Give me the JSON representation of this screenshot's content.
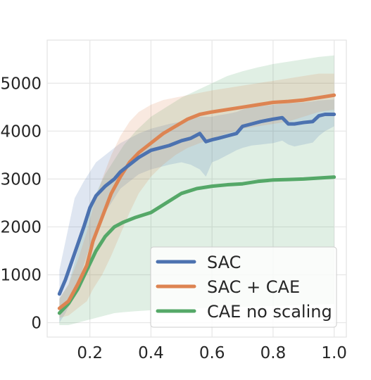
{
  "chart_data": {
    "type": "line",
    "title": "",
    "xlabel": "",
    "ylabel": "",
    "xlim": [
      0.06,
      1.04
    ],
    "ylim": [
      -300,
      5900
    ],
    "xticks": [
      0.2,
      0.4,
      0.6,
      0.8,
      1.0
    ],
    "xtick_labels": [
      "0.2",
      "0.4",
      "0.6",
      "0.8",
      "1.0"
    ],
    "yticks": [
      0,
      1000,
      2000,
      3000,
      4000,
      5000
    ],
    "ytick_labels": [
      "0",
      "1000",
      "2000",
      "3000",
      "4000",
      "5000"
    ],
    "grid": true,
    "legend_position": "lower-right",
    "series": [
      {
        "name": "SAC",
        "color": "#4c72b0",
        "x": [
          0.1,
          0.12,
          0.15,
          0.18,
          0.2,
          0.22,
          0.25,
          0.28,
          0.3,
          0.33,
          0.36,
          0.4,
          0.43,
          0.46,
          0.5,
          0.53,
          0.56,
          0.58,
          0.6,
          0.62,
          0.65,
          0.68,
          0.7,
          0.73,
          0.76,
          0.8,
          0.83,
          0.85,
          0.87,
          0.9,
          0.93,
          0.95,
          0.97,
          1.0
        ],
        "mean": [
          600,
          900,
          1450,
          2000,
          2400,
          2650,
          2850,
          3000,
          3150,
          3300,
          3450,
          3600,
          3650,
          3700,
          3800,
          3850,
          3950,
          3780,
          3820,
          3850,
          3900,
          3950,
          4100,
          4150,
          4200,
          4250,
          4280,
          4150,
          4150,
          4180,
          4200,
          4320,
          4350,
          4350
        ],
        "lower": [
          0,
          200,
          600,
          1200,
          1600,
          1900,
          2300,
          2600,
          2800,
          2950,
          3100,
          3200,
          3250,
          3300,
          3350,
          3300,
          3200,
          3050,
          3350,
          3400,
          3500,
          3600,
          3650,
          3700,
          3720,
          3750,
          3800,
          3720,
          3680,
          3720,
          3760,
          3900,
          4000,
          4100
        ],
        "upper": [
          1100,
          1700,
          2600,
          2950,
          3150,
          3350,
          3500,
          3650,
          3750,
          3850,
          3950,
          4050,
          4100,
          4150,
          4200,
          4250,
          4300,
          4300,
          4300,
          4330,
          4360,
          4400,
          4450,
          4500,
          4520,
          4550,
          4570,
          4580,
          4590,
          4600,
          4620,
          4640,
          4650,
          4660
        ]
      },
      {
        "name": "SAC + CAE",
        "color": "#dd8452",
        "x": [
          0.1,
          0.13,
          0.16,
          0.19,
          0.21,
          0.24,
          0.27,
          0.3,
          0.33,
          0.36,
          0.4,
          0.44,
          0.48,
          0.52,
          0.56,
          0.6,
          0.65,
          0.7,
          0.75,
          0.8,
          0.85,
          0.9,
          0.95,
          1.0
        ],
        "mean": [
          300,
          450,
          800,
          1200,
          1700,
          2200,
          2700,
          3050,
          3350,
          3550,
          3750,
          3950,
          4100,
          4250,
          4350,
          4400,
          4450,
          4500,
          4550,
          4600,
          4620,
          4650,
          4700,
          4750
        ],
        "lower": [
          100,
          150,
          300,
          450,
          700,
          1000,
          1400,
          1850,
          2300,
          2700,
          3050,
          3300,
          3500,
          3650,
          3750,
          3850,
          3950,
          4050,
          4100,
          4150,
          4200,
          4300,
          4400,
          4450
        ],
        "upper": [
          500,
          800,
          1300,
          1900,
          2400,
          3000,
          3500,
          3900,
          4200,
          4400,
          4550,
          4650,
          4700,
          4750,
          4800,
          4850,
          4900,
          4950,
          5000,
          5050,
          5100,
          5150,
          5200,
          5200
        ]
      },
      {
        "name": "CAE no scaling",
        "color": "#55a868",
        "x": [
          0.1,
          0.13,
          0.16,
          0.19,
          0.22,
          0.25,
          0.28,
          0.31,
          0.35,
          0.4,
          0.45,
          0.5,
          0.55,
          0.6,
          0.65,
          0.7,
          0.75,
          0.8,
          0.85,
          0.9,
          0.95,
          1.0
        ],
        "mean": [
          200,
          400,
          700,
          1100,
          1500,
          1800,
          2000,
          2100,
          2200,
          2300,
          2500,
          2700,
          2800,
          2850,
          2880,
          2900,
          2950,
          2980,
          2990,
          3000,
          3020,
          3040
        ],
        "lower": [
          -50,
          -50,
          0,
          50,
          100,
          150,
          200,
          220,
          240,
          260,
          280,
          290,
          300,
          310,
          320,
          330,
          340,
          350,
          360,
          370,
          380,
          390
        ],
        "upper": [
          500,
          800,
          1500,
          2200,
          2700,
          3100,
          3400,
          3700,
          4000,
          4300,
          4500,
          4700,
          4850,
          5000,
          5150,
          5250,
          5330,
          5400,
          5450,
          5500,
          5550,
          5580
        ]
      }
    ]
  }
}
